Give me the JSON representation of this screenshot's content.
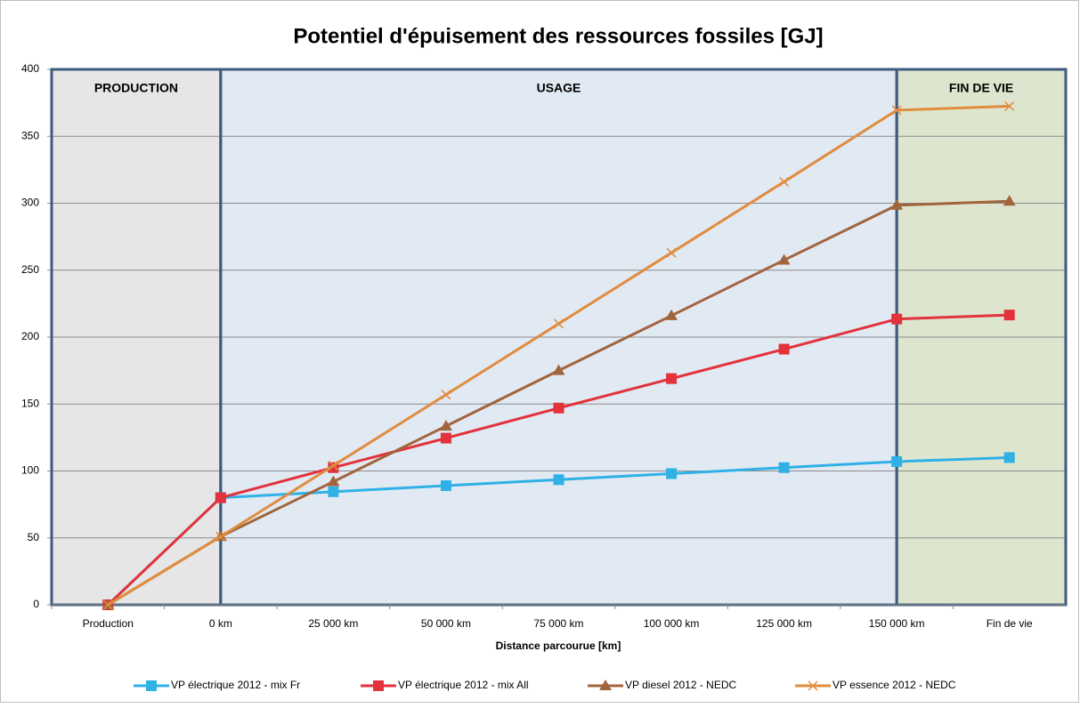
{
  "chart_data": {
    "type": "line",
    "title": "Potentiel d'épuisement des ressources fossiles [GJ]",
    "x_label": "Distance parcourue [km]",
    "categories": [
      "Production",
      "0 km",
      "25 000 km",
      "50 000 km",
      "75 000 km",
      "100 000 km",
      "125 000 km",
      "150 000 km",
      "Fin de vie"
    ],
    "series": [
      {
        "name": "VP électrique 2012 - mix Fr",
        "color": "#2fb1e6",
        "marker": "square",
        "values": [
          0,
          80,
          84.5,
          89,
          93.5,
          98,
          102.5,
          107,
          110
        ]
      },
      {
        "name": "VP électrique 2012 - mix All",
        "color": "#e2323c",
        "marker": "square",
        "values": [
          0,
          80,
          102.5,
          124.5,
          147,
          169,
          191,
          213.5,
          216.5
        ]
      },
      {
        "name": "VP diesel 2012 - NEDC",
        "color": "#a2643c",
        "marker": "triangle",
        "values": [
          0,
          51,
          92,
          133.5,
          175,
          216,
          257.5,
          298.5,
          301.5
        ]
      },
      {
        "name": "VP essence 2012 - NEDC",
        "color": "#e08c3e",
        "marker": "x",
        "values": [
          0,
          51,
          104,
          157,
          210,
          263,
          316,
          369.5,
          372.5
        ]
      }
    ],
    "regions": [
      {
        "label": "PRODUCTION",
        "from": null,
        "to": "0 km",
        "color": "#e6e6e6"
      },
      {
        "label": "USAGE",
        "from": "0 km",
        "to": "150 000 km",
        "color": "#e1e9f3"
      },
      {
        "label": "FIN DE VIE",
        "from": "150 000 km",
        "to": null,
        "color": "#dde5cf"
      }
    ],
    "ylim": [
      0,
      400
    ],
    "yticks": [
      0,
      50,
      100,
      150,
      200,
      250,
      300,
      350,
      400
    ],
    "grid": true,
    "legend": "bottom"
  }
}
